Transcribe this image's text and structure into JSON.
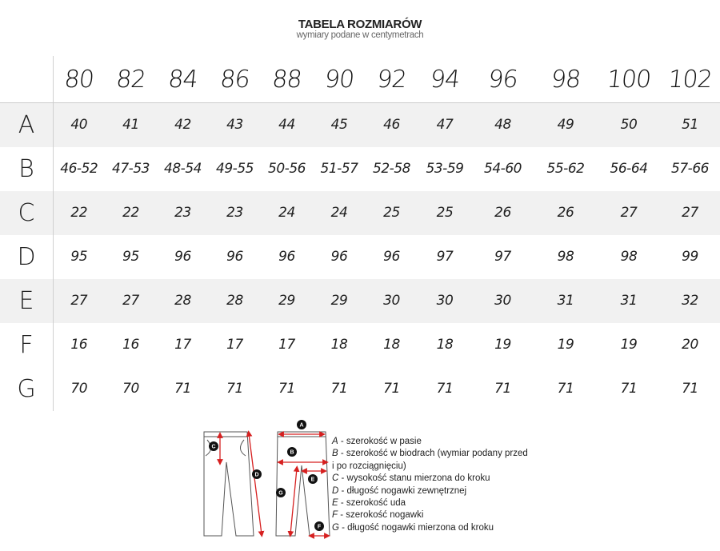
{
  "header": {
    "title": "TABELA ROZMIARÓW",
    "subtitle": "wymiary podane w centymetrach"
  },
  "table": {
    "columns": [
      "80",
      "82",
      "84",
      "86",
      "88",
      "90",
      "92",
      "94",
      "96",
      "98",
      "100",
      "102"
    ],
    "rows": [
      {
        "label": "A",
        "values": [
          "40",
          "41",
          "42",
          "43",
          "44",
          "45",
          "46",
          "47",
          "48",
          "49",
          "50",
          "51"
        ]
      },
      {
        "label": "B",
        "values": [
          "46-52",
          "47-53",
          "48-54",
          "49-55",
          "50-56",
          "51-57",
          "52-58",
          "53-59",
          "54-60",
          "55-62",
          "56-64",
          "57-66"
        ]
      },
      {
        "label": "C",
        "values": [
          "22",
          "22",
          "23",
          "23",
          "24",
          "24",
          "25",
          "25",
          "26",
          "26",
          "27",
          "27"
        ]
      },
      {
        "label": "D",
        "values": [
          "95",
          "95",
          "96",
          "96",
          "96",
          "96",
          "96",
          "97",
          "97",
          "98",
          "98",
          "99"
        ]
      },
      {
        "label": "E",
        "values": [
          "27",
          "27",
          "28",
          "28",
          "29",
          "29",
          "30",
          "30",
          "30",
          "31",
          "31",
          "32"
        ]
      },
      {
        "label": "F",
        "values": [
          "16",
          "16",
          "17",
          "17",
          "17",
          "18",
          "18",
          "18",
          "19",
          "19",
          "19",
          "20"
        ]
      },
      {
        "label": "G",
        "values": [
          "70",
          "70",
          "71",
          "71",
          "71",
          "71",
          "71",
          "71",
          "71",
          "71",
          "71",
          "71"
        ]
      }
    ]
  },
  "legend": {
    "markers": [
      "A",
      "B",
      "C",
      "D",
      "E",
      "F",
      "G"
    ],
    "items": [
      {
        "key": "A",
        "text": " - szerokość w pasie"
      },
      {
        "key": "B",
        "text": " - szerokość w biodrach (wymiar podany przed"
      },
      {
        "key": "",
        "text": "i po rozciągnięciu)"
      },
      {
        "key": "C",
        "text": " - wysokość stanu mierzona do kroku"
      },
      {
        "key": "D",
        "text": " - długość nogawki zewnętrznej"
      },
      {
        "key": "E",
        "text": " - szerokość uda"
      },
      {
        "key": "F",
        "text": " - szerokość nogawki"
      },
      {
        "key": "G",
        "text": " - długość nogawki mierzona od kroku"
      }
    ]
  },
  "colors": {
    "shade": "#f1f1f1",
    "arrow": "#d62020",
    "marker": "#111111"
  }
}
